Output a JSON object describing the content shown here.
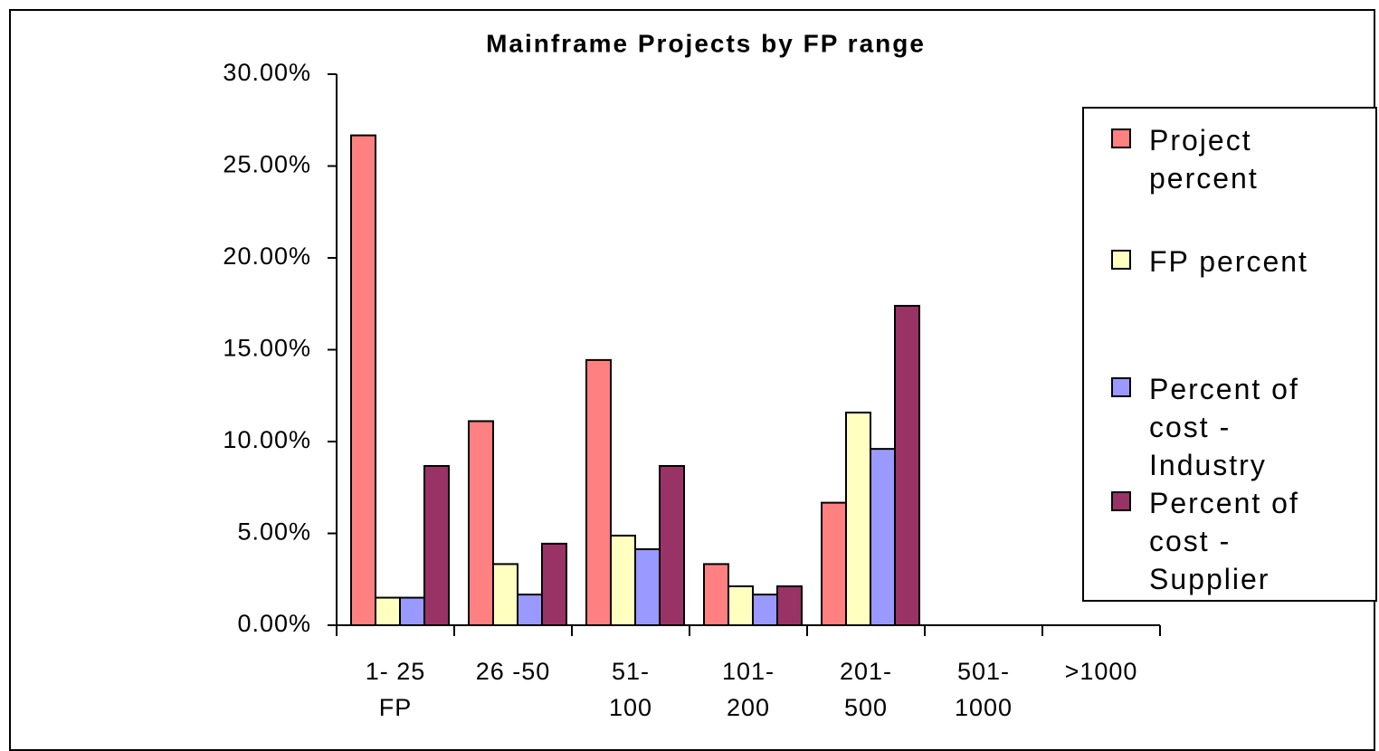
{
  "chart_data": {
    "type": "bar",
    "title": "Mainframe Projects by FP range",
    "categories": [
      "1- 25\nFP",
      "26 -50",
      "51-\n100",
      "101-\n200",
      "201-\n500",
      "501-\n1000",
      ">1000"
    ],
    "series": [
      {
        "name": "Project\npercent",
        "color": "#ff8080",
        "values": [
          26.67,
          11.11,
          14.44,
          3.33,
          6.67,
          0,
          0
        ]
      },
      {
        "name": "FP percent",
        "color": "#ffffc0",
        "values": [
          1.5,
          3.33,
          4.88,
          2.12,
          11.58,
          0,
          0
        ]
      },
      {
        "name": "Percent of\ncost -\nIndustry",
        "color": "#9999ff",
        "values": [
          1.5,
          1.67,
          4.14,
          1.67,
          9.6,
          0,
          0
        ]
      },
      {
        "name": "Percent of\ncost -\nSupplier",
        "color": "#993366",
        "values": [
          8.67,
          4.44,
          8.67,
          2.12,
          17.39,
          0,
          0
        ]
      }
    ],
    "ylim": [
      0,
      30
    ],
    "yticks": [
      {
        "value": 0,
        "label": "0.00%"
      },
      {
        "value": 5,
        "label": "5.00%"
      },
      {
        "value": 10,
        "label": "10.00%"
      },
      {
        "value": 15,
        "label": "15.00%"
      },
      {
        "value": 20,
        "label": "20.00%"
      },
      {
        "value": 25,
        "label": "25.00%"
      },
      {
        "value": 30,
        "label": "30.00%"
      }
    ],
    "grid": false,
    "legend": "right"
  }
}
